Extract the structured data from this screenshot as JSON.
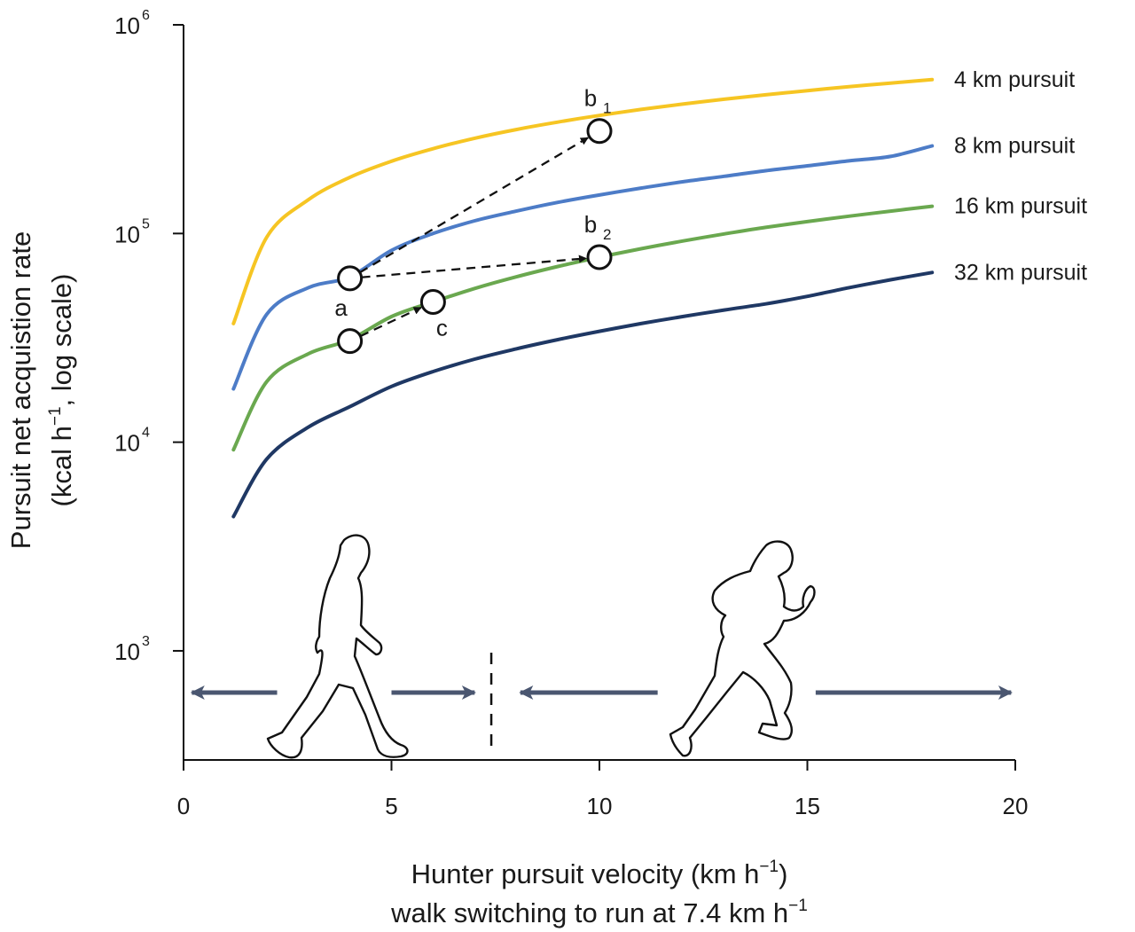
{
  "chart_data": {
    "type": "line",
    "yscale": "log",
    "xlim": [
      0,
      20
    ],
    "ylim": [
      300,
      1000000
    ],
    "xticks": [
      0,
      5,
      10,
      15,
      20
    ],
    "xtick_labels": [
      "0",
      "5",
      "10",
      "15",
      "20"
    ],
    "yticks": [
      1000,
      10000,
      100000,
      1000000
    ],
    "ytick_labels": [
      {
        "base": "10",
        "exp": "3"
      },
      {
        "base": "10",
        "exp": "4"
      },
      {
        "base": "10",
        "exp": "5"
      },
      {
        "base": "10",
        "exp": "6"
      }
    ],
    "xlabel": {
      "line1_main": "Hunter pursuit velocity (km h",
      "line1_exp": "−1",
      "line1_close": ")",
      "line2_main": "walk switching to run at 7.4 km h",
      "line2_exp": "−1"
    },
    "ylabel": {
      "line1": "Pursuit net acquistion rate",
      "line2_pre": "(kcal h",
      "line2_exp": "−1",
      "line2_post": ", log scale)"
    },
    "series": [
      {
        "name": "4 km pursuit",
        "color": "#f6c523",
        "x": [
          1.2,
          2,
          3,
          4,
          5,
          6,
          7,
          8,
          9,
          10,
          11,
          12,
          13,
          14,
          15,
          16,
          17,
          18
        ],
        "y": [
          37000,
          96000,
          145000,
          186000,
          222000,
          255000,
          286000,
          315000,
          342000,
          368000,
          393000,
          417000,
          440000,
          462000,
          484000,
          505000,
          526000,
          546000
        ]
      },
      {
        "name": "8 km pursuit",
        "color": "#4d7cc7",
        "x": [
          1.2,
          2,
          3,
          4,
          5,
          6,
          7,
          8,
          9,
          10,
          11,
          12,
          13,
          14,
          15,
          16,
          17,
          18
        ],
        "y": [
          18000,
          41000,
          55000,
          62000,
          83000,
          100000,
          115000,
          128000,
          141000,
          153000,
          165000,
          177000,
          188000,
          200000,
          211000,
          223000,
          234000,
          263000
        ]
      },
      {
        "name": "16 km pursuit",
        "color": "#6aa84f",
        "x": [
          1.2,
          2,
          3,
          4,
          5,
          6,
          7,
          8,
          9,
          10,
          11,
          12,
          13,
          14,
          15,
          16,
          17,
          18
        ],
        "y": [
          9200,
          19500,
          26500,
          31000,
          40000,
          47000,
          54500,
          62000,
          69500,
          77000,
          84500,
          92000,
          99500,
          107000,
          114000,
          121000,
          128000,
          135000
        ]
      },
      {
        "name": "32 km pursuit",
        "color": "#1f3864",
        "x": [
          1.2,
          2,
          3,
          4,
          5,
          6,
          7,
          8,
          9,
          10,
          11,
          12,
          13,
          14,
          15,
          16,
          17,
          18
        ],
        "y": [
          4400,
          8300,
          11800,
          14800,
          18500,
          21800,
          25000,
          28000,
          31000,
          34000,
          37000,
          40000,
          43000,
          46000,
          50000,
          55000,
          60000,
          65000
        ]
      }
    ],
    "points": [
      {
        "label": "b",
        "sub": "1",
        "x": 10,
        "y": 310000
      },
      {
        "label": "b",
        "sub": "2",
        "x": 10,
        "y": 77000
      },
      {
        "label": "a",
        "sub": "",
        "x": 4,
        "y": 61000
      },
      {
        "label": "",
        "sub": "",
        "x": 4,
        "y": 30500
      },
      {
        "label": "c",
        "sub": "",
        "x": 6,
        "y": 47000
      }
    ],
    "arrows": [
      {
        "from": [
          4,
          61000
        ],
        "to": [
          10,
          310000
        ]
      },
      {
        "from": [
          4,
          61000
        ],
        "to": [
          10,
          77000
        ]
      },
      {
        "from": [
          4,
          30500
        ],
        "to": [
          6,
          47000
        ]
      }
    ],
    "threshold_line_x": 7.4,
    "range_arrows": [
      {
        "name": "walk-range-arrow-left",
        "from": 2.25,
        "to": 0.2
      },
      {
        "name": "walk-range-arrow-right",
        "from": 5.0,
        "to": 7.0
      },
      {
        "name": "run-range-arrow-left",
        "from": 11.4,
        "to": 8.1
      },
      {
        "name": "run-range-arrow-right",
        "from": 15.2,
        "to": 19.9
      }
    ],
    "arrow_color": "#4a5670"
  }
}
